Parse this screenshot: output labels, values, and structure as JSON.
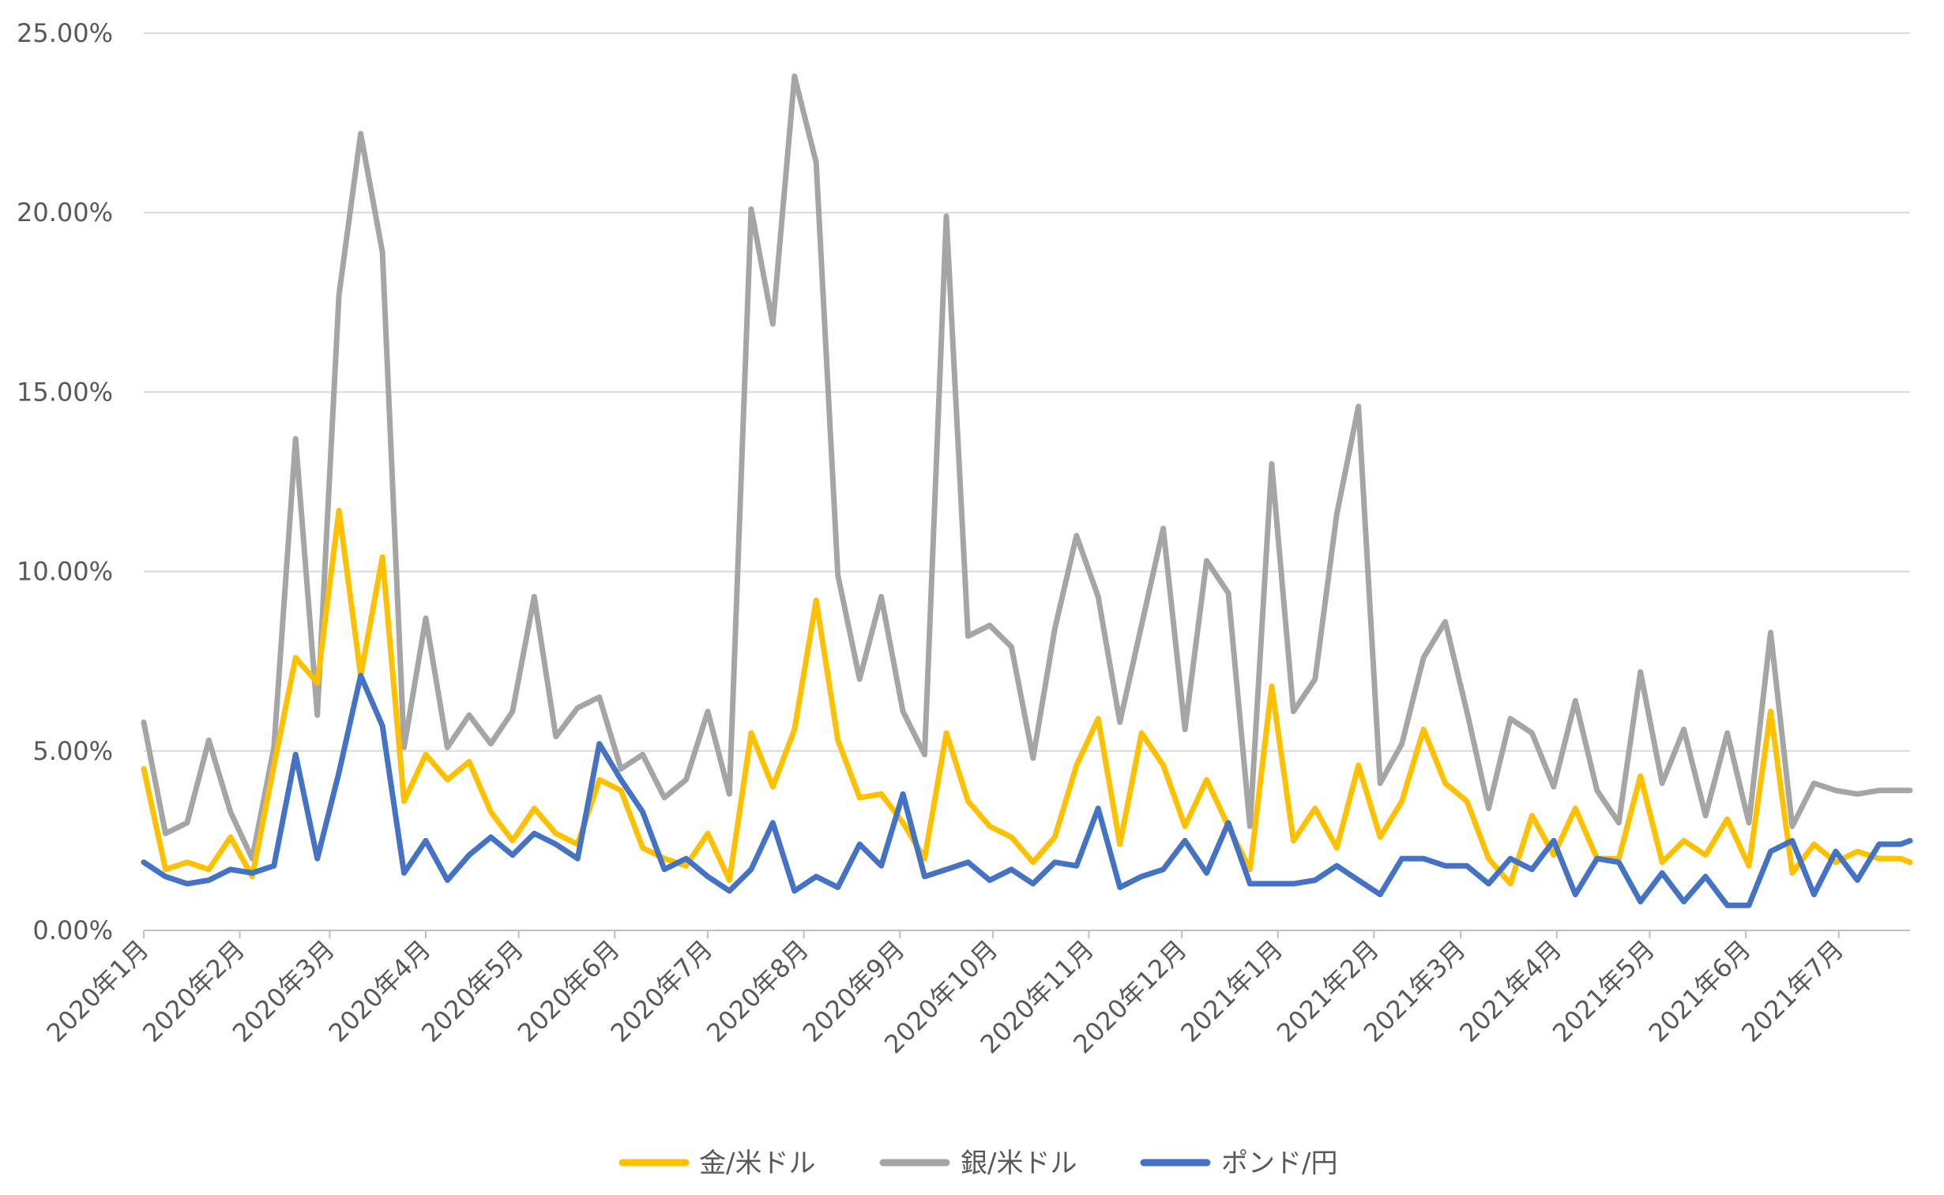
{
  "chart_data": {
    "type": "line",
    "title": "",
    "xlabel": "",
    "ylabel": "",
    "ylim": [
      0,
      25
    ],
    "y_ticks": [
      "0.00%",
      "5.00%",
      "10.00%",
      "15.00%",
      "20.00%",
      "25.00%"
    ],
    "x_tick_labels": [
      "2020年1月",
      "2020年2月",
      "2020年3月",
      "2020年4月",
      "2020年5月",
      "2020年6月",
      "2020年7月",
      "2020年8月",
      "2020年9月",
      "2020年10月",
      "2020年11月",
      "2020年12月",
      "2021年1月",
      "2021年2月",
      "2021年3月",
      "2021年4月",
      "2021年5月",
      "2021年6月",
      "2021年7月"
    ],
    "x_start": "2020-01-01",
    "x_end": "2021-07-24",
    "grid": true,
    "legend_position": "bottom",
    "series": [
      {
        "name": "金/米ドル",
        "color": "#FFC000",
        "x": [
          "2020-01-01",
          "2020-01-08",
          "2020-01-15",
          "2020-01-22",
          "2020-01-29",
          "2020-02-05",
          "2020-02-12",
          "2020-02-19",
          "2020-02-26",
          "2020-03-04",
          "2020-03-11",
          "2020-03-18",
          "2020-03-25",
          "2020-04-01",
          "2020-04-08",
          "2020-04-15",
          "2020-04-22",
          "2020-04-29",
          "2020-05-06",
          "2020-05-13",
          "2020-05-20",
          "2020-05-27",
          "2020-06-03",
          "2020-06-10",
          "2020-06-17",
          "2020-06-24",
          "2020-07-01",
          "2020-07-08",
          "2020-07-15",
          "2020-07-22",
          "2020-07-29",
          "2020-08-05",
          "2020-08-12",
          "2020-08-19",
          "2020-08-26",
          "2020-09-02",
          "2020-09-09",
          "2020-09-16",
          "2020-09-23",
          "2020-09-30",
          "2020-10-07",
          "2020-10-14",
          "2020-10-21",
          "2020-10-28",
          "2020-11-04",
          "2020-11-11",
          "2020-11-18",
          "2020-11-25",
          "2020-12-02",
          "2020-12-09",
          "2020-12-16",
          "2020-12-23",
          "2020-12-30",
          "2021-01-06",
          "2021-01-13",
          "2021-01-20",
          "2021-01-27",
          "2021-02-03",
          "2021-02-10",
          "2021-02-17",
          "2021-02-24",
          "2021-03-03",
          "2021-03-10",
          "2021-03-17",
          "2021-03-24",
          "2021-03-31",
          "2021-04-07",
          "2021-04-14",
          "2021-04-21",
          "2021-04-28",
          "2021-05-05",
          "2021-05-12",
          "2021-05-19",
          "2021-05-26",
          "2021-06-02",
          "2021-06-09",
          "2021-06-16",
          "2021-06-23",
          "2021-06-30",
          "2021-07-07",
          "2021-07-14",
          "2021-07-21",
          "2021-07-24"
        ],
        "values": [
          4.5,
          1.7,
          1.9,
          1.7,
          2.6,
          1.5,
          4.6,
          7.6,
          6.9,
          11.7,
          7.1,
          10.4,
          3.6,
          4.9,
          4.2,
          4.7,
          3.3,
          2.5,
          3.4,
          2.7,
          2.4,
          4.2,
          3.9,
          2.3,
          2.0,
          1.8,
          2.7,
          1.4,
          5.5,
          4.0,
          5.6,
          9.2,
          5.3,
          3.7,
          3.8,
          3.0,
          2.0,
          5.5,
          3.6,
          2.9,
          2.6,
          1.9,
          2.6,
          4.6,
          5.9,
          2.4,
          5.5,
          4.6,
          2.9,
          4.2,
          2.9,
          1.7,
          6.8,
          2.5,
          3.4,
          2.3,
          4.6,
          2.6,
          3.6,
          5.6,
          4.1,
          3.6,
          2.0,
          1.3,
          3.2,
          2.1,
          3.4,
          2.0,
          2.0,
          4.3,
          1.9,
          2.5,
          2.1,
          3.1,
          1.8,
          6.1,
          1.6,
          2.4,
          1.9,
          2.2,
          2.0,
          2.0,
          1.9
        ]
      },
      {
        "name": "銀/米ドル",
        "color": "#A5A5A5",
        "x": [
          "2020-01-01",
          "2020-01-08",
          "2020-01-15",
          "2020-01-22",
          "2020-01-29",
          "2020-02-05",
          "2020-02-12",
          "2020-02-19",
          "2020-02-26",
          "2020-03-04",
          "2020-03-11",
          "2020-03-18",
          "2020-03-25",
          "2020-04-01",
          "2020-04-08",
          "2020-04-15",
          "2020-04-22",
          "2020-04-29",
          "2020-05-06",
          "2020-05-13",
          "2020-05-20",
          "2020-05-27",
          "2020-06-03",
          "2020-06-10",
          "2020-06-17",
          "2020-06-24",
          "2020-07-01",
          "2020-07-08",
          "2020-07-15",
          "2020-07-22",
          "2020-07-29",
          "2020-08-05",
          "2020-08-12",
          "2020-08-19",
          "2020-08-26",
          "2020-09-02",
          "2020-09-09",
          "2020-09-16",
          "2020-09-23",
          "2020-09-30",
          "2020-10-07",
          "2020-10-14",
          "2020-10-21",
          "2020-10-28",
          "2020-11-04",
          "2020-11-11",
          "2020-11-18",
          "2020-11-25",
          "2020-12-02",
          "2020-12-09",
          "2020-12-16",
          "2020-12-23",
          "2020-12-30",
          "2021-01-06",
          "2021-01-13",
          "2021-01-20",
          "2021-01-27",
          "2021-02-03",
          "2021-02-10",
          "2021-02-17",
          "2021-02-24",
          "2021-03-03",
          "2021-03-10",
          "2021-03-17",
          "2021-03-24",
          "2021-03-31",
          "2021-04-07",
          "2021-04-14",
          "2021-04-21",
          "2021-04-28",
          "2021-05-05",
          "2021-05-12",
          "2021-05-19",
          "2021-05-26",
          "2021-06-02",
          "2021-06-09",
          "2021-06-16",
          "2021-06-23",
          "2021-06-30",
          "2021-07-07",
          "2021-07-14",
          "2021-07-21",
          "2021-07-24"
        ],
        "values": [
          5.8,
          2.7,
          3.0,
          5.3,
          3.3,
          2.0,
          5.1,
          13.7,
          6.0,
          17.7,
          22.2,
          18.9,
          5.1,
          8.7,
          5.1,
          6.0,
          5.2,
          6.1,
          9.3,
          5.4,
          6.2,
          6.5,
          4.5,
          4.9,
          3.7,
          4.2,
          6.1,
          3.8,
          20.1,
          16.9,
          23.8,
          21.4,
          9.9,
          7.0,
          9.3,
          6.1,
          4.9,
          19.9,
          8.2,
          8.5,
          7.9,
          4.8,
          8.4,
          11.0,
          9.3,
          5.8,
          8.5,
          11.2,
          5.6,
          10.3,
          9.4,
          2.9,
          13.0,
          6.1,
          7.0,
          11.6,
          14.6,
          4.1,
          5.2,
          7.6,
          8.6,
          6.1,
          3.4,
          5.9,
          5.5,
          4.0,
          6.4,
          3.9,
          3.0,
          7.2,
          4.1,
          5.6,
          3.2,
          5.5,
          3.0,
          8.3,
          2.9,
          4.1,
          3.9,
          3.8,
          3.9,
          3.9,
          3.9
        ]
      },
      {
        "name": "ポンド/円",
        "color": "#4472C4",
        "x": [
          "2020-01-01",
          "2020-01-08",
          "2020-01-15",
          "2020-01-22",
          "2020-01-29",
          "2020-02-05",
          "2020-02-12",
          "2020-02-19",
          "2020-02-26",
          "2020-03-04",
          "2020-03-11",
          "2020-03-18",
          "2020-03-25",
          "2020-04-01",
          "2020-04-08",
          "2020-04-15",
          "2020-04-22",
          "2020-04-29",
          "2020-05-06",
          "2020-05-13",
          "2020-05-20",
          "2020-05-27",
          "2020-06-03",
          "2020-06-10",
          "2020-06-17",
          "2020-06-24",
          "2020-07-01",
          "2020-07-08",
          "2020-07-15",
          "2020-07-22",
          "2020-07-29",
          "2020-08-05",
          "2020-08-12",
          "2020-08-19",
          "2020-08-26",
          "2020-09-02",
          "2020-09-09",
          "2020-09-16",
          "2020-09-23",
          "2020-09-30",
          "2020-10-07",
          "2020-10-14",
          "2020-10-21",
          "2020-10-28",
          "2020-11-04",
          "2020-11-11",
          "2020-11-18",
          "2020-11-25",
          "2020-12-02",
          "2020-12-09",
          "2020-12-16",
          "2020-12-23",
          "2020-12-30",
          "2021-01-06",
          "2021-01-13",
          "2021-01-20",
          "2021-01-27",
          "2021-02-03",
          "2021-02-10",
          "2021-02-17",
          "2021-02-24",
          "2021-03-03",
          "2021-03-10",
          "2021-03-17",
          "2021-03-24",
          "2021-03-31",
          "2021-04-07",
          "2021-04-14",
          "2021-04-21",
          "2021-04-28",
          "2021-05-05",
          "2021-05-12",
          "2021-05-19",
          "2021-05-26",
          "2021-06-02",
          "2021-06-09",
          "2021-06-16",
          "2021-06-23",
          "2021-06-30",
          "2021-07-07",
          "2021-07-14",
          "2021-07-21",
          "2021-07-24"
        ],
        "values": [
          1.9,
          1.5,
          1.3,
          1.4,
          1.7,
          1.6,
          1.8,
          4.9,
          2.0,
          4.4,
          7.1,
          5.7,
          1.6,
          2.5,
          1.4,
          2.1,
          2.6,
          2.1,
          2.7,
          2.4,
          2.0,
          5.2,
          4.2,
          3.3,
          1.7,
          2.0,
          1.5,
          1.1,
          1.7,
          3.0,
          1.1,
          1.5,
          1.2,
          2.4,
          1.8,
          3.8,
          1.5,
          1.7,
          1.9,
          1.4,
          1.7,
          1.3,
          1.9,
          1.8,
          3.4,
          1.2,
          1.5,
          1.7,
          2.5,
          1.6,
          3.0,
          1.3,
          1.3,
          1.3,
          1.4,
          1.8,
          1.4,
          1.0,
          2.0,
          2.0,
          1.8,
          1.8,
          1.3,
          2.0,
          1.7,
          2.5,
          1.0,
          2.0,
          1.9,
          0.8,
          1.6,
          0.8,
          1.5,
          0.7,
          0.7,
          2.2,
          2.5,
          1.0,
          2.2,
          1.4,
          2.4,
          2.4,
          2.5
        ]
      }
    ]
  }
}
